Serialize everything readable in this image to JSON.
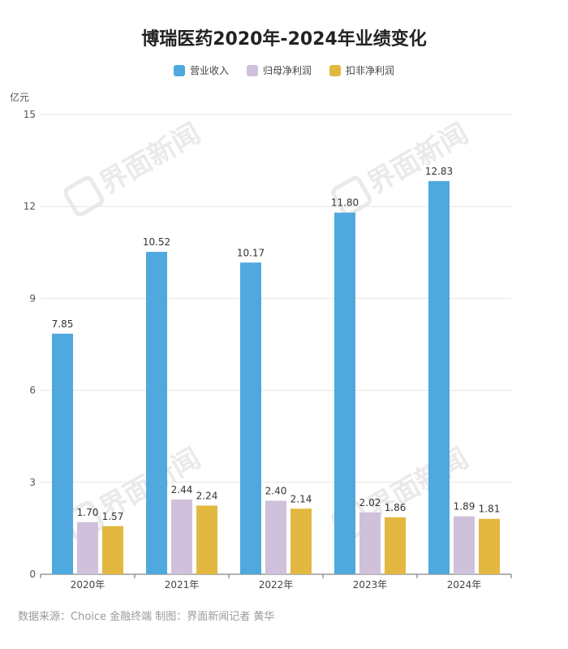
{
  "chart_data": {
    "type": "bar",
    "title": "博瑞医药2020年-2024年业绩变化",
    "ylabel": "亿元",
    "ylim": [
      0,
      15
    ],
    "yticks": [
      0,
      3,
      6,
      9,
      12,
      15
    ],
    "categories": [
      "2020年",
      "2021年",
      "2022年",
      "2023年",
      "2024年"
    ],
    "series": [
      {
        "name": "营业收入",
        "color": "#4fa8de",
        "values": [
          7.85,
          10.52,
          10.17,
          11.8,
          12.83
        ]
      },
      {
        "name": "归母净利润",
        "color": "#cfc0dc",
        "values": [
          1.7,
          2.44,
          2.4,
          2.02,
          1.89
        ]
      },
      {
        "name": "扣非净利润",
        "color": "#e2b840",
        "values": [
          1.57,
          2.24,
          2.14,
          1.86,
          1.81
        ]
      }
    ],
    "grid": true,
    "legend_position": "top-center"
  },
  "footer": {
    "source": "数据来源：Choice 金融终端 制图：界面新闻记者 黄华"
  },
  "watermark": {
    "text": "界面新闻",
    "icon": "jiemian-logo-icon"
  }
}
